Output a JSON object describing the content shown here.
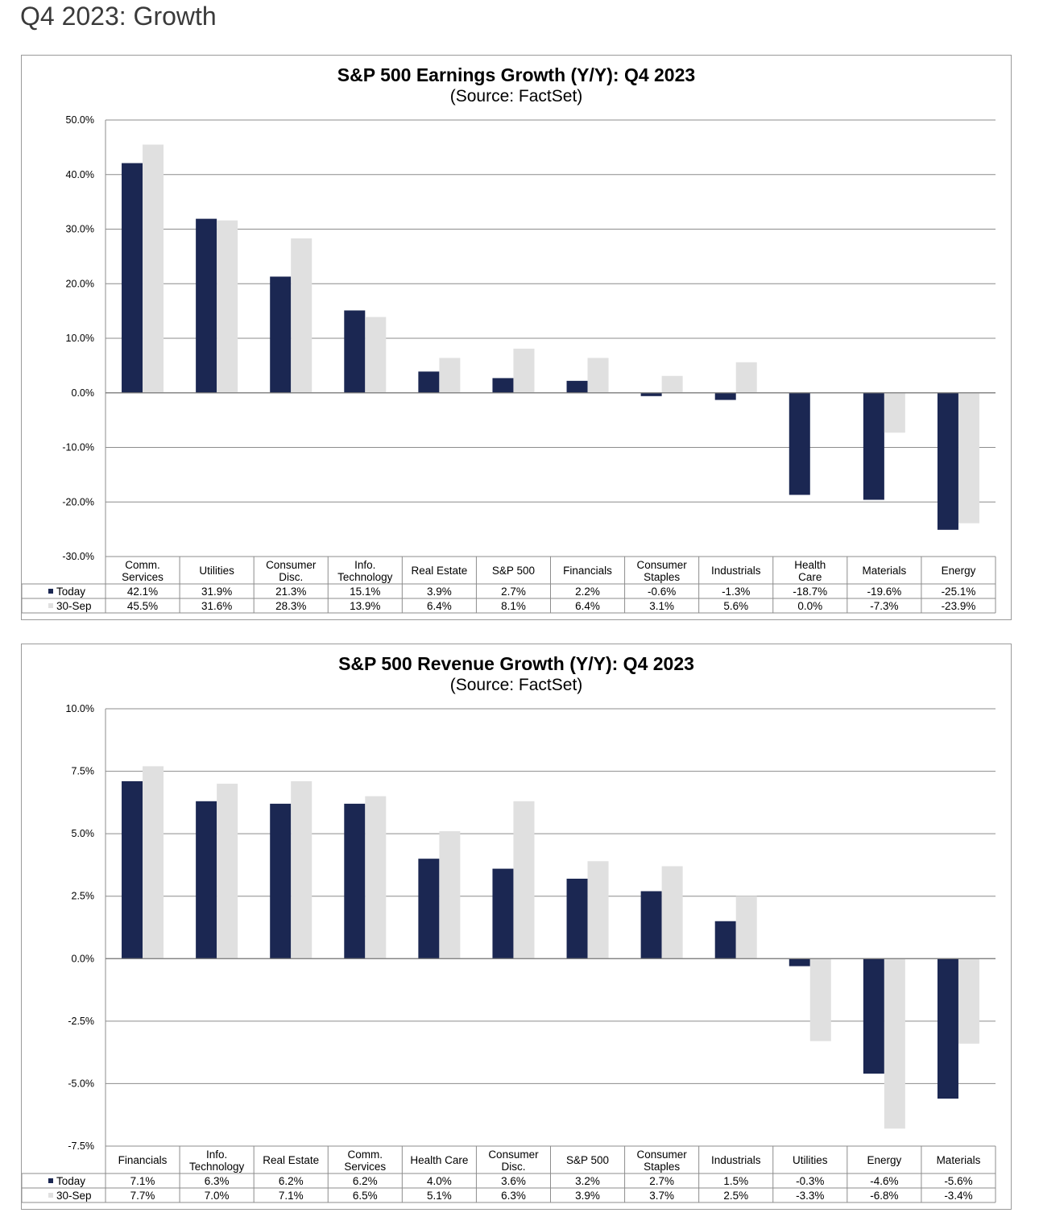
{
  "page_title": "Q4 2023: Growth",
  "colors": {
    "today": "#1b2752",
    "sep30": "#e0e0e0",
    "grid": "#8c8c8c"
  },
  "chart_data": [
    {
      "type": "bar",
      "title": "S&P 500 Earnings Growth (Y/Y): Q4 2023",
      "subtitle": "(Source: FactSet)",
      "ylim": [
        -30,
        50
      ],
      "yticks": [
        50,
        40,
        30,
        20,
        10,
        0,
        -10,
        -20,
        -30
      ],
      "ytick_labels": [
        "50.0%",
        "40.0%",
        "30.0%",
        "20.0%",
        "10.0%",
        "0.0%",
        "-10.0%",
        "-20.0%",
        "-30.0%"
      ],
      "grid": true,
      "legend": "table-below",
      "categories": [
        [
          "Comm.",
          "Services"
        ],
        [
          "Utilities"
        ],
        [
          "Consumer",
          "Disc."
        ],
        [
          "Info.",
          "Technology"
        ],
        [
          "Real Estate"
        ],
        [
          "S&P 500"
        ],
        [
          "Financials"
        ],
        [
          "Consumer",
          "Staples"
        ],
        [
          "Industrials"
        ],
        [
          "Health",
          "Care"
        ],
        [
          "Materials"
        ],
        [
          "Energy"
        ]
      ],
      "series": [
        {
          "name": "Today",
          "values": [
            42.1,
            31.9,
            21.3,
            15.1,
            3.9,
            2.7,
            2.2,
            -0.6,
            -1.3,
            -18.7,
            -19.6,
            -25.1
          ],
          "labels": [
            "42.1%",
            "31.9%",
            "21.3%",
            "15.1%",
            "3.9%",
            "2.7%",
            "2.2%",
            "-0.6%",
            "-1.3%",
            "-18.7%",
            "-19.6%",
            "-25.1%"
          ]
        },
        {
          "name": "30-Sep",
          "values": [
            45.5,
            31.6,
            28.3,
            13.9,
            6.4,
            8.1,
            6.4,
            3.1,
            5.6,
            0.0,
            -7.3,
            -23.9
          ],
          "labels": [
            "45.5%",
            "31.6%",
            "28.3%",
            "13.9%",
            "6.4%",
            "8.1%",
            "6.4%",
            "3.1%",
            "5.6%",
            "0.0%",
            "-7.3%",
            "-23.9%"
          ]
        }
      ]
    },
    {
      "type": "bar",
      "title": "S&P 500 Revenue Growth (Y/Y): Q4 2023",
      "subtitle": "(Source: FactSet)",
      "ylim": [
        -7.5,
        10
      ],
      "yticks": [
        10,
        7.5,
        5,
        2.5,
        0,
        -2.5,
        -5,
        -7.5
      ],
      "ytick_labels": [
        "10.0%",
        "7.5%",
        "5.0%",
        "2.5%",
        "0.0%",
        "-2.5%",
        "-5.0%",
        "-7.5%"
      ],
      "grid": true,
      "legend": "table-below",
      "categories": [
        [
          "Financials"
        ],
        [
          "Info.",
          "Technology"
        ],
        [
          "Real Estate"
        ],
        [
          "Comm.",
          "Services"
        ],
        [
          "Health Care"
        ],
        [
          "Consumer",
          "Disc."
        ],
        [
          "S&P 500"
        ],
        [
          "Consumer",
          "Staples"
        ],
        [
          "Industrials"
        ],
        [
          "Utilities"
        ],
        [
          "Energy"
        ],
        [
          "Materials"
        ]
      ],
      "series": [
        {
          "name": "Today",
          "values": [
            7.1,
            6.3,
            6.2,
            6.2,
            4.0,
            3.6,
            3.2,
            2.7,
            1.5,
            -0.3,
            -4.6,
            -5.6
          ],
          "labels": [
            "7.1%",
            "6.3%",
            "6.2%",
            "6.2%",
            "4.0%",
            "3.6%",
            "3.2%",
            "2.7%",
            "1.5%",
            "-0.3%",
            "-4.6%",
            "-5.6%"
          ]
        },
        {
          "name": "30-Sep",
          "values": [
            7.7,
            7.0,
            7.1,
            6.5,
            5.1,
            6.3,
            3.9,
            3.7,
            2.5,
            -3.3,
            -6.8,
            -3.4
          ],
          "labels": [
            "7.7%",
            "7.0%",
            "7.1%",
            "6.5%",
            "5.1%",
            "6.3%",
            "3.9%",
            "3.7%",
            "2.5%",
            "-3.3%",
            "-6.8%",
            "-3.4%"
          ]
        }
      ]
    }
  ]
}
